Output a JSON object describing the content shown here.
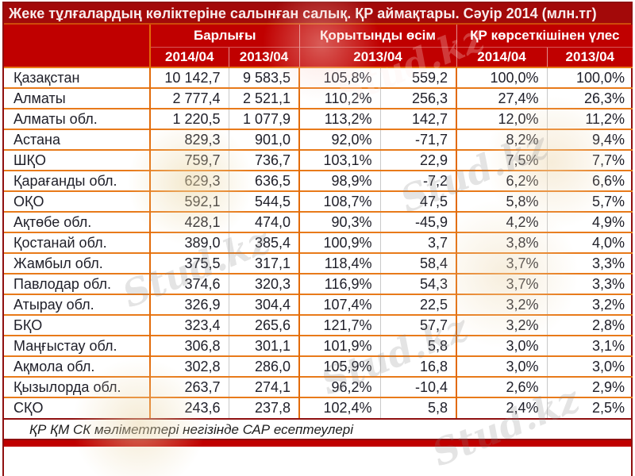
{
  "title": "Жеке тұлғалардың көліктеріне салынған салық. ҚР аймақтары. Сәуір 2014 (млн.тг)",
  "watermark": {
    "text": "Stud.kz"
  },
  "colors": {
    "header_red": "#c00000",
    "title_red": "#a30909",
    "grid_orange": "#e26b0a",
    "outer_border_red": "#8f1010",
    "light_divider": "#c9c9c9",
    "bottom_strip_red": "#c00000"
  },
  "table": {
    "group_headers": [
      {
        "label": "",
        "colspan": 1
      },
      {
        "label": "Барлығы",
        "colspan": 2
      },
      {
        "label": "Қорытынды өсім",
        "colspan": 2
      },
      {
        "label": "ҚР көрсеткішінен үлес",
        "colspan": 2
      }
    ],
    "sub_headers": [
      "2014/04",
      "2013/04",
      "2013/04",
      "2014/04",
      "2013/04"
    ],
    "rows": [
      [
        "Қазақстан",
        "10 142,7",
        "9 583,5",
        "105,8%",
        "559,2",
        "100,0%",
        "100,0%"
      ],
      [
        "Алматы",
        "2 777,4",
        "2 521,1",
        "110,2%",
        "256,3",
        "27,4%",
        "26,3%"
      ],
      [
        "Алматы обл.",
        "1 220,5",
        "1 077,9",
        "113,2%",
        "142,7",
        "12,0%",
        "11,2%"
      ],
      [
        "Астана",
        "829,3",
        "901,0",
        "92,0%",
        "-71,7",
        "8,2%",
        "9,4%"
      ],
      [
        "ШҚО",
        "759,7",
        "736,7",
        "103,1%",
        "22,9",
        "7,5%",
        "7,7%"
      ],
      [
        "Қарағанды обл.",
        "629,3",
        "636,5",
        "98,9%",
        "-7,2",
        "6,2%",
        "6,6%"
      ],
      [
        "ОҚО",
        "592,1",
        "544,5",
        "108,7%",
        "47,5",
        "5,8%",
        "5,7%"
      ],
      [
        "Ақтөбе обл.",
        "428,1",
        "474,0",
        "90,3%",
        "-45,9",
        "4,2%",
        "4,9%"
      ],
      [
        "Қостанай обл.",
        "389,0",
        "385,4",
        "100,9%",
        "3,7",
        "3,8%",
        "4,0%"
      ],
      [
        "Жамбыл обл.",
        "375,5",
        "317,1",
        "118,4%",
        "58,4",
        "3,7%",
        "3,3%"
      ],
      [
        "Павлодар обл.",
        "374,6",
        "320,3",
        "116,9%",
        "54,3",
        "3,7%",
        "3,3%"
      ],
      [
        "Атырау обл.",
        "326,9",
        "304,4",
        "107,4%",
        "22,5",
        "3,2%",
        "3,2%"
      ],
      [
        "БҚО",
        "323,4",
        "265,6",
        "121,7%",
        "57,7",
        "3,2%",
        "2,8%"
      ],
      [
        "Маңғыстау обл.",
        "306,8",
        "301,1",
        "101,9%",
        "5,8",
        "3,0%",
        "3,1%"
      ],
      [
        "Ақмола обл.",
        "302,8",
        "286,0",
        "105,9%",
        "16,8",
        "3,0%",
        "3,0%"
      ],
      [
        "Қызылорда обл.",
        "263,7",
        "274,1",
        "96,2%",
        "-10,4",
        "2,6%",
        "2,9%"
      ],
      [
        "СҚО",
        "243,6",
        "237,8",
        "102,4%",
        "5,8",
        "2,4%",
        "2,5%"
      ]
    ]
  },
  "footer": "ҚР ҚМ СК мәліметтері негізінде САР есептеулері"
}
